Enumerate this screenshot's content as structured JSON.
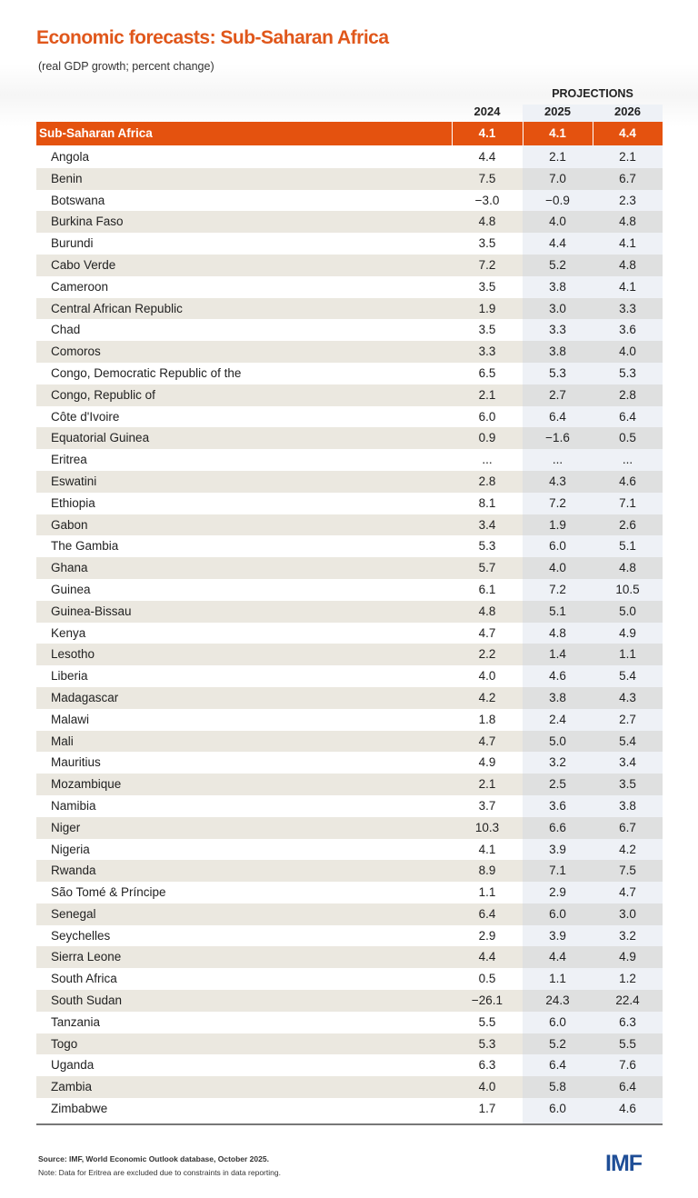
{
  "chart_data": {
    "type": "table",
    "title": "Economic forecasts: Sub-Saharan Africa",
    "subtitle": "(real GDP growth; percent change)",
    "projections_label": "PROJECTIONS",
    "columns": [
      "2024",
      "2025",
      "2026"
    ],
    "region": {
      "name": "Sub-Saharan Africa",
      "values": [
        "4.1",
        "4.1",
        "4.4"
      ]
    },
    "rows": [
      {
        "name": "Angola",
        "values": [
          "4.4",
          "2.1",
          "2.1"
        ]
      },
      {
        "name": "Benin",
        "values": [
          "7.5",
          "7.0",
          "6.7"
        ]
      },
      {
        "name": "Botswana",
        "values": [
          "−3.0",
          "−0.9",
          "2.3"
        ]
      },
      {
        "name": "Burkina Faso",
        "values": [
          "4.8",
          "4.0",
          "4.8"
        ]
      },
      {
        "name": "Burundi",
        "values": [
          "3.5",
          "4.4",
          "4.1"
        ]
      },
      {
        "name": "Cabo Verde",
        "values": [
          "7.2",
          "5.2",
          "4.8"
        ]
      },
      {
        "name": "Cameroon",
        "values": [
          "3.5",
          "3.8",
          "4.1"
        ]
      },
      {
        "name": "Central African Republic",
        "values": [
          "1.9",
          "3.0",
          "3.3"
        ]
      },
      {
        "name": "Chad",
        "values": [
          "3.5",
          "3.3",
          "3.6"
        ]
      },
      {
        "name": "Comoros",
        "values": [
          "3.3",
          "3.8",
          "4.0"
        ]
      },
      {
        "name": "Congo, Democratic Republic of the",
        "values": [
          "6.5",
          "5.3",
          "5.3"
        ]
      },
      {
        "name": "Congo, Republic of",
        "values": [
          "2.1",
          "2.7",
          "2.8"
        ]
      },
      {
        "name": "Côte d'Ivoire",
        "values": [
          "6.0",
          "6.4",
          "6.4"
        ]
      },
      {
        "name": "Equatorial Guinea",
        "values": [
          "0.9",
          "−1.6",
          "0.5"
        ]
      },
      {
        "name": "Eritrea",
        "values": [
          "...",
          "...",
          "..."
        ]
      },
      {
        "name": "Eswatini",
        "values": [
          "2.8",
          "4.3",
          "4.6"
        ]
      },
      {
        "name": "Ethiopia",
        "values": [
          "8.1",
          "7.2",
          "7.1"
        ]
      },
      {
        "name": "Gabon",
        "values": [
          "3.4",
          "1.9",
          "2.6"
        ]
      },
      {
        "name": "The Gambia",
        "values": [
          "5.3",
          "6.0",
          "5.1"
        ]
      },
      {
        "name": "Ghana",
        "values": [
          "5.7",
          "4.0",
          "4.8"
        ]
      },
      {
        "name": "Guinea",
        "values": [
          "6.1",
          "7.2",
          "10.5"
        ]
      },
      {
        "name": "Guinea-Bissau",
        "values": [
          "4.8",
          "5.1",
          "5.0"
        ]
      },
      {
        "name": "Kenya",
        "values": [
          "4.7",
          "4.8",
          "4.9"
        ]
      },
      {
        "name": "Lesotho",
        "values": [
          "2.2",
          "1.4",
          "1.1"
        ]
      },
      {
        "name": "Liberia",
        "values": [
          "4.0",
          "4.6",
          "5.4"
        ]
      },
      {
        "name": "Madagascar",
        "values": [
          "4.2",
          "3.8",
          "4.3"
        ]
      },
      {
        "name": "Malawi",
        "values": [
          "1.8",
          "2.4",
          "2.7"
        ]
      },
      {
        "name": "Mali",
        "values": [
          "4.7",
          "5.0",
          "5.4"
        ]
      },
      {
        "name": "Mauritius",
        "values": [
          "4.9",
          "3.2",
          "3.4"
        ]
      },
      {
        "name": "Mozambique",
        "values": [
          "2.1",
          "2.5",
          "3.5"
        ]
      },
      {
        "name": "Namibia",
        "values": [
          "3.7",
          "3.6",
          "3.8"
        ]
      },
      {
        "name": "Niger",
        "values": [
          "10.3",
          "6.6",
          "6.7"
        ]
      },
      {
        "name": "Nigeria",
        "values": [
          "4.1",
          "3.9",
          "4.2"
        ]
      },
      {
        "name": "Rwanda",
        "values": [
          "8.9",
          "7.1",
          "7.5"
        ]
      },
      {
        "name": "São Tomé & Príncipe",
        "values": [
          "1.1",
          "2.9",
          "4.7"
        ]
      },
      {
        "name": "Senegal",
        "values": [
          "6.4",
          "6.0",
          "3.0"
        ]
      },
      {
        "name": "Seychelles",
        "values": [
          "2.9",
          "3.9",
          "3.2"
        ]
      },
      {
        "name": "Sierra Leone",
        "values": [
          "4.4",
          "4.4",
          "4.9"
        ]
      },
      {
        "name": "South Africa",
        "values": [
          "0.5",
          "1.1",
          "1.2"
        ]
      },
      {
        "name": "South Sudan",
        "values": [
          "−26.1",
          "24.3",
          "22.4"
        ]
      },
      {
        "name": "Tanzania",
        "values": [
          "5.5",
          "6.0",
          "6.3"
        ]
      },
      {
        "name": "Togo",
        "values": [
          "5.3",
          "5.2",
          "5.5"
        ]
      },
      {
        "name": "Uganda",
        "values": [
          "6.3",
          "6.4",
          "7.6"
        ]
      },
      {
        "name": "Zambia",
        "values": [
          "4.0",
          "5.8",
          "6.4"
        ]
      },
      {
        "name": "Zimbabwe",
        "values": [
          "1.7",
          "6.0",
          "4.6"
        ]
      }
    ],
    "colors": {
      "title": "#e0571b",
      "region_row": "#e4520f",
      "alt_row": "#ebe8e0",
      "projection_col": "#eef1f6",
      "logo": "#1f4e97"
    }
  },
  "footer": {
    "source": "Source: IMF, World Economic Outlook database, October 2025.",
    "note": "Note: Data for Eritrea are excluded due to constraints in data reporting.",
    "logo": "IMF"
  }
}
